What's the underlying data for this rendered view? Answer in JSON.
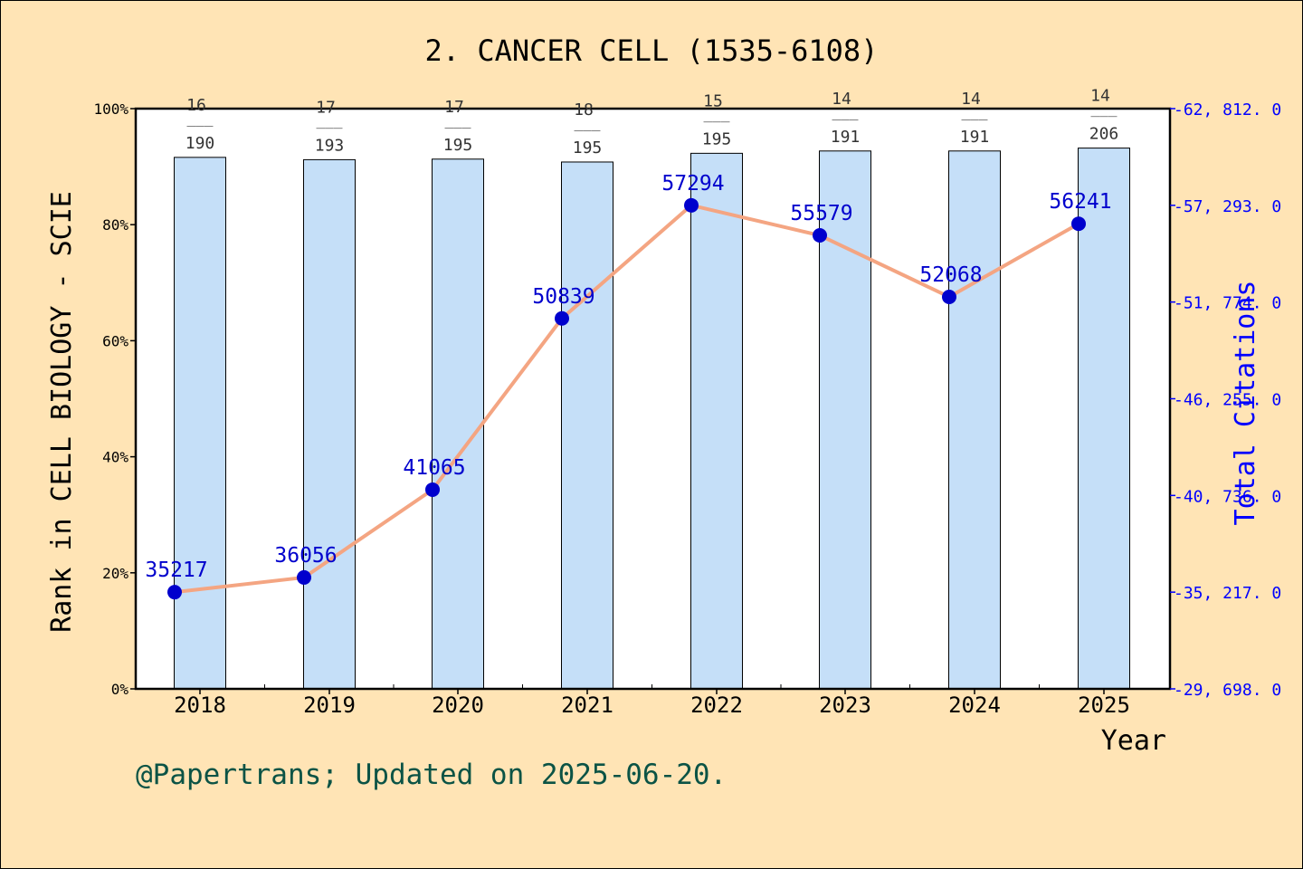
{
  "chart_data": {
    "type": "bar",
    "title": "2. CANCER CELL (1535-6108)",
    "xlabel": "Year",
    "ylabel_left": "Rank in CELL BIOLOGY - SCIE",
    "ylabel_right": "Total Citations",
    "categories": [
      "2018",
      "2019",
      "2020",
      "2021",
      "2022",
      "2023",
      "2024",
      "2025"
    ],
    "rank_labels": [
      {
        "rank": "16",
        "total": "190"
      },
      {
        "rank": "17",
        "total": "193"
      },
      {
        "rank": "17",
        "total": "195"
      },
      {
        "rank": "18",
        "total": "195"
      },
      {
        "rank": "15",
        "total": "195"
      },
      {
        "rank": "14",
        "total": "191"
      },
      {
        "rank": "14",
        "total": "191"
      },
      {
        "rank": "14",
        "total": "206"
      }
    ],
    "fraction_separator": "___",
    "series": [
      {
        "kind": "bar",
        "axis": "left",
        "unit": "percent",
        "values": [
          91.6,
          91.2,
          91.3,
          90.8,
          92.3,
          92.7,
          92.7,
          93.2
        ],
        "color": "#C5DFF8"
      },
      {
        "kind": "line",
        "axis": "right",
        "values": [
          35217,
          36056,
          41065,
          50839,
          57294,
          55579,
          52068,
          56241
        ],
        "labels": [
          "35217",
          "36056",
          "41065",
          "50839",
          "57294",
          "55579",
          "52068",
          "56241"
        ],
        "line_color": "#F4A582",
        "marker_color": "#0000CD"
      }
    ],
    "y_left": {
      "lim": [
        0,
        100
      ],
      "ticks": [
        "0%",
        "20%",
        "40%",
        "60%",
        "80%",
        "100%"
      ]
    },
    "y_right": {
      "lim": [
        29698,
        62812
      ],
      "tick_values": [
        29698,
        35217,
        40736,
        46255,
        51774,
        57293,
        62812
      ],
      "ticks": [
        "29, 698. 0",
        "35, 217. 0",
        "40, 736. 0",
        "46, 255. 0",
        "51, 774. 0",
        "57, 293. 0",
        "62, 812. 0"
      ],
      "color": "#0000FF"
    },
    "grid": false,
    "legend": "none"
  },
  "footer": "@Papertrans; Updated on 2025-06-20.",
  "colors": {
    "background": "#FFE4B5",
    "plot_background": "#FFFFFF",
    "footer_text": "#0B5345",
    "rank_text": "#333333"
  }
}
